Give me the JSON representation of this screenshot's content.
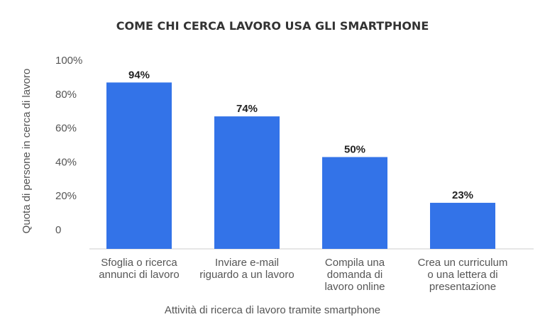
{
  "chart_data": {
    "type": "bar",
    "title": "COME CHI CERCA LAVORO USA GLI SMARTPHONE",
    "xlabel": "Attività di ricerca di lavoro tramite smartphone",
    "ylabel": "Quota di persone in cerca di lavoro",
    "ylim": [
      0,
      100
    ],
    "yticks": [
      {
        "value": 0,
        "label": "0"
      },
      {
        "value": 20,
        "label": "20%"
      },
      {
        "value": 40,
        "label": "40%"
      },
      {
        "value": 60,
        "label": "60%"
      },
      {
        "value": 80,
        "label": "80%"
      },
      {
        "value": 100,
        "label": "100%"
      }
    ],
    "categories": [
      [
        "Sfoglia o ricerca",
        "annunci di lavoro"
      ],
      [
        "Inviare e-mail",
        "riguardo a un lavoro"
      ],
      [
        "Compila una",
        "domanda di",
        "lavoro online"
      ],
      [
        "Crea un curriculum",
        "o una lettera di",
        "presentazione"
      ]
    ],
    "values": [
      94,
      74,
      50,
      23
    ],
    "data_labels": [
      "94%",
      "74%",
      "50%",
      "23%"
    ],
    "grid": false,
    "bar_color": "#3373e8"
  }
}
